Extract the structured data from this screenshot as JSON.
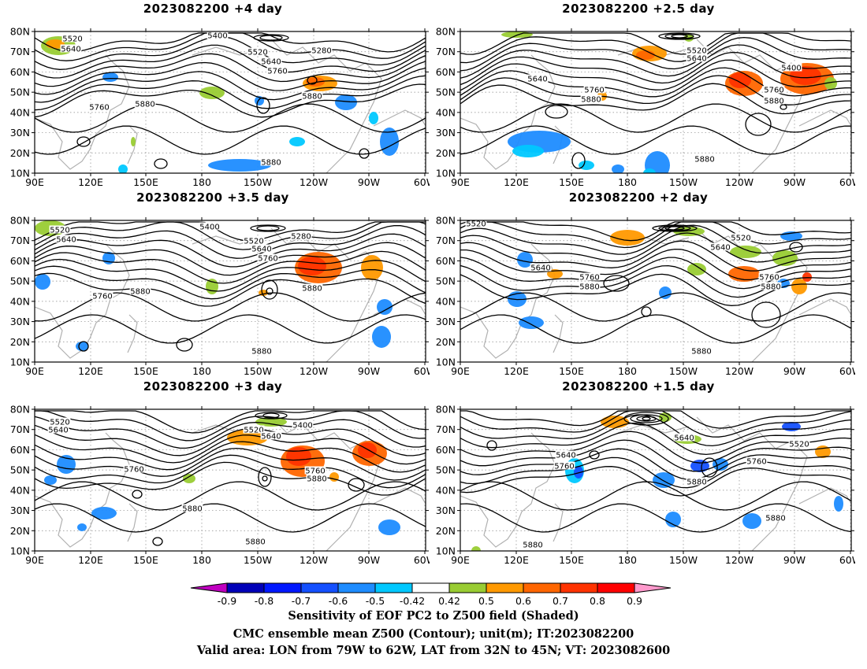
{
  "panels": [
    {
      "title": "2023082200  +4 day",
      "contour_labels": [
        "5520",
        "5640",
        "5400",
        "5280",
        "5520",
        "5640",
        "5760",
        "5760",
        "5880",
        "5880",
        "5880"
      ]
    },
    {
      "title": "2023082200  +2.5 day",
      "contour_labels": [
        "5520",
        "5640",
        "5400",
        "5640",
        "5760",
        "5880",
        "5760",
        "5880",
        "5880"
      ]
    },
    {
      "title": "2023082200  +3.5 day",
      "contour_labels": [
        "5520",
        "5640",
        "5400",
        "5280",
        "5520",
        "5640",
        "5760",
        "5760",
        "5880",
        "5880",
        "5880"
      ]
    },
    {
      "title": "2023082200  +2 day",
      "contour_labels": [
        "5520",
        "5520",
        "5640",
        "5640",
        "5760",
        "5880",
        "5760",
        "5880",
        "5880"
      ]
    },
    {
      "title": "2023082200  +3 day",
      "contour_labels": [
        "5520",
        "5640",
        "5520",
        "5640",
        "5400",
        "5760",
        "5760",
        "5880",
        "5880",
        "5880"
      ]
    },
    {
      "title": "2023082200  +1.5 day",
      "contour_labels": [
        "5640",
        "5520",
        "5640",
        "5760",
        "5760",
        "5880",
        "5880",
        "5880"
      ]
    }
  ],
  "axes": {
    "lat_labels": [
      "80N",
      "70N",
      "60N",
      "50N",
      "40N",
      "30N",
      "20N",
      "10N"
    ],
    "lon_labels": [
      "90E",
      "120E",
      "150E",
      "180",
      "150W",
      "120W",
      "90W",
      "60W"
    ]
  },
  "colorbar": {
    "ticks": [
      "-0.9",
      "-0.8",
      "-0.7",
      "-0.6",
      "-0.5",
      "-0.42",
      "0.42",
      "0.5",
      "0.6",
      "0.7",
      "0.8",
      "0.9"
    ],
    "colors": [
      "#c000c0",
      "#0000b8",
      "#0018ff",
      "#1450ff",
      "#1e8cff",
      "#00c8ff",
      "#ffffff",
      "#99cc33",
      "#ff9900",
      "#ff6600",
      "#ff3300",
      "#ff0000",
      "#ff99cc"
    ]
  },
  "captions": [
    "Sensitivity of EOF PC2 to Z500 field (Shaded)",
    "CMC ensemble mean Z500 (Contour); unit(m); IT:2023082200",
    "Valid area: LON from 79W to 62W, LAT from 32N to 45N; VT: 2023082600"
  ]
}
